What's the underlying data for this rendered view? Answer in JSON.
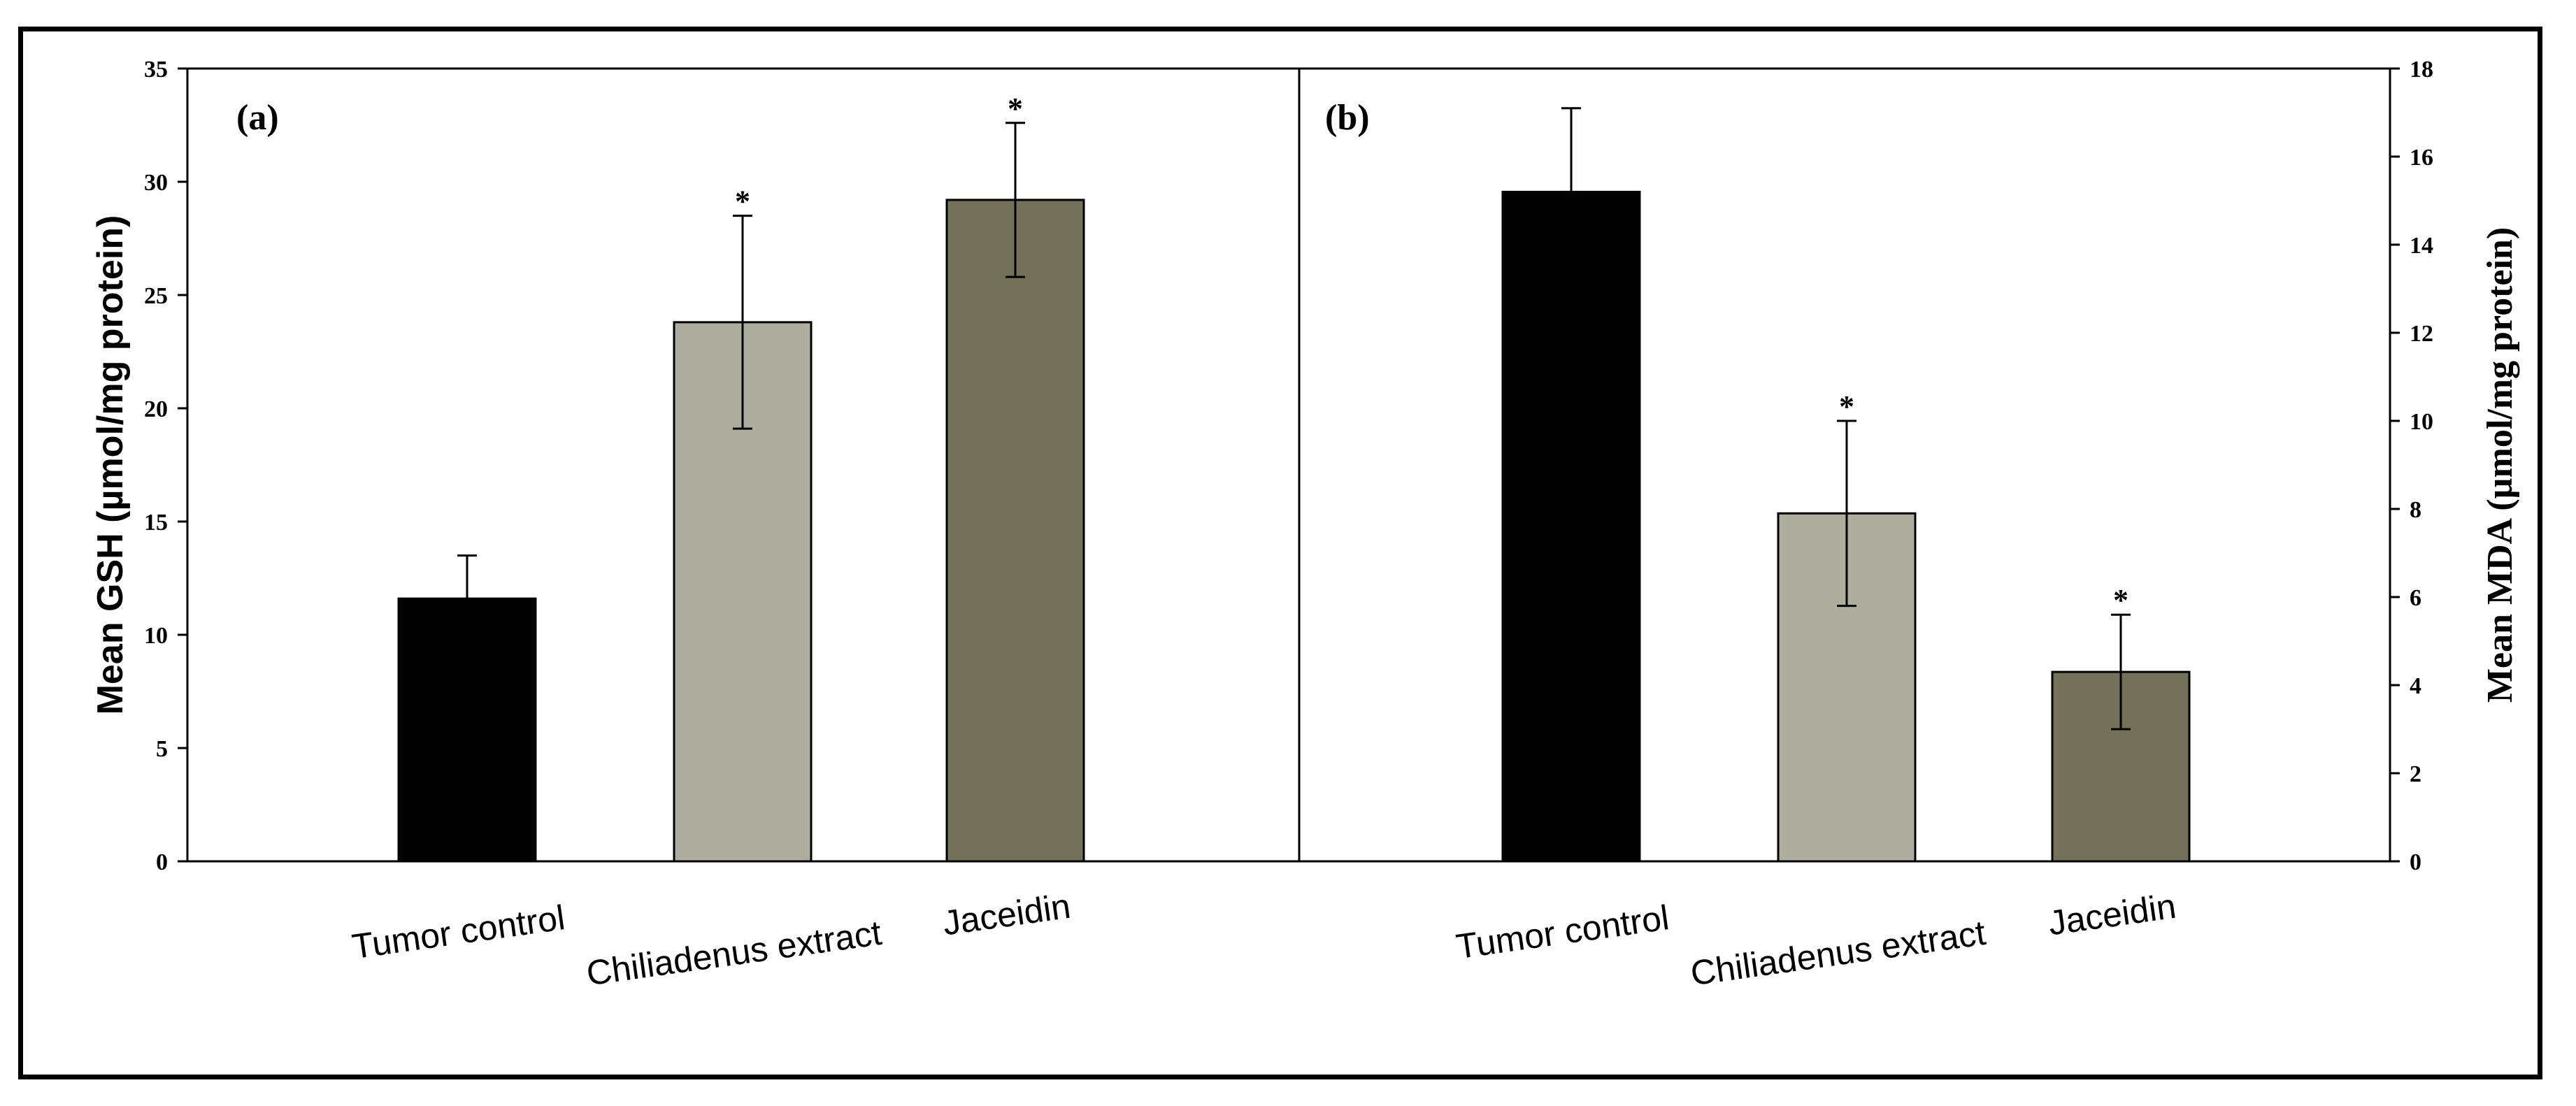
{
  "chart_data": [
    {
      "type": "bar",
      "panel_label": "(a)",
      "categories": [
        "Tumor control",
        "Chiliadenus extract",
        "Jaceidin"
      ],
      "values": [
        11.6,
        23.8,
        29.2
      ],
      "errors": [
        1.9,
        4.7,
        3.4
      ],
      "significance": [
        "",
        "*",
        "*"
      ],
      "colors": [
        "#000000",
        "#aeada0",
        "#737259"
      ],
      "ylabel": "Mean  GSH  (µmol/mg protein)",
      "ylim": [
        0,
        35
      ],
      "yticks": [
        "0",
        "5",
        "10",
        "15",
        "20",
        "25",
        "30",
        "35"
      ],
      "y_axis_side": "left",
      "grid": false
    },
    {
      "type": "bar",
      "panel_label": "(b)",
      "categories": [
        "Tumor control",
        "Chiliadenus extract",
        "Jaceidin"
      ],
      "values": [
        15.2,
        7.9,
        4.3
      ],
      "errors": [
        1.9,
        2.1,
        1.3
      ],
      "significance": [
        "",
        "*",
        "*"
      ],
      "colors": [
        "#000000",
        "#aeada0",
        "#737259"
      ],
      "ylabel": "Mean  MDA  (µmol/mg protein)",
      "ylim": [
        0,
        18
      ],
      "yticks": [
        "0",
        "2",
        "4",
        "6",
        "8",
        "10",
        "12",
        "14",
        "16",
        "18"
      ],
      "y_axis_side": "right",
      "grid": false
    }
  ]
}
